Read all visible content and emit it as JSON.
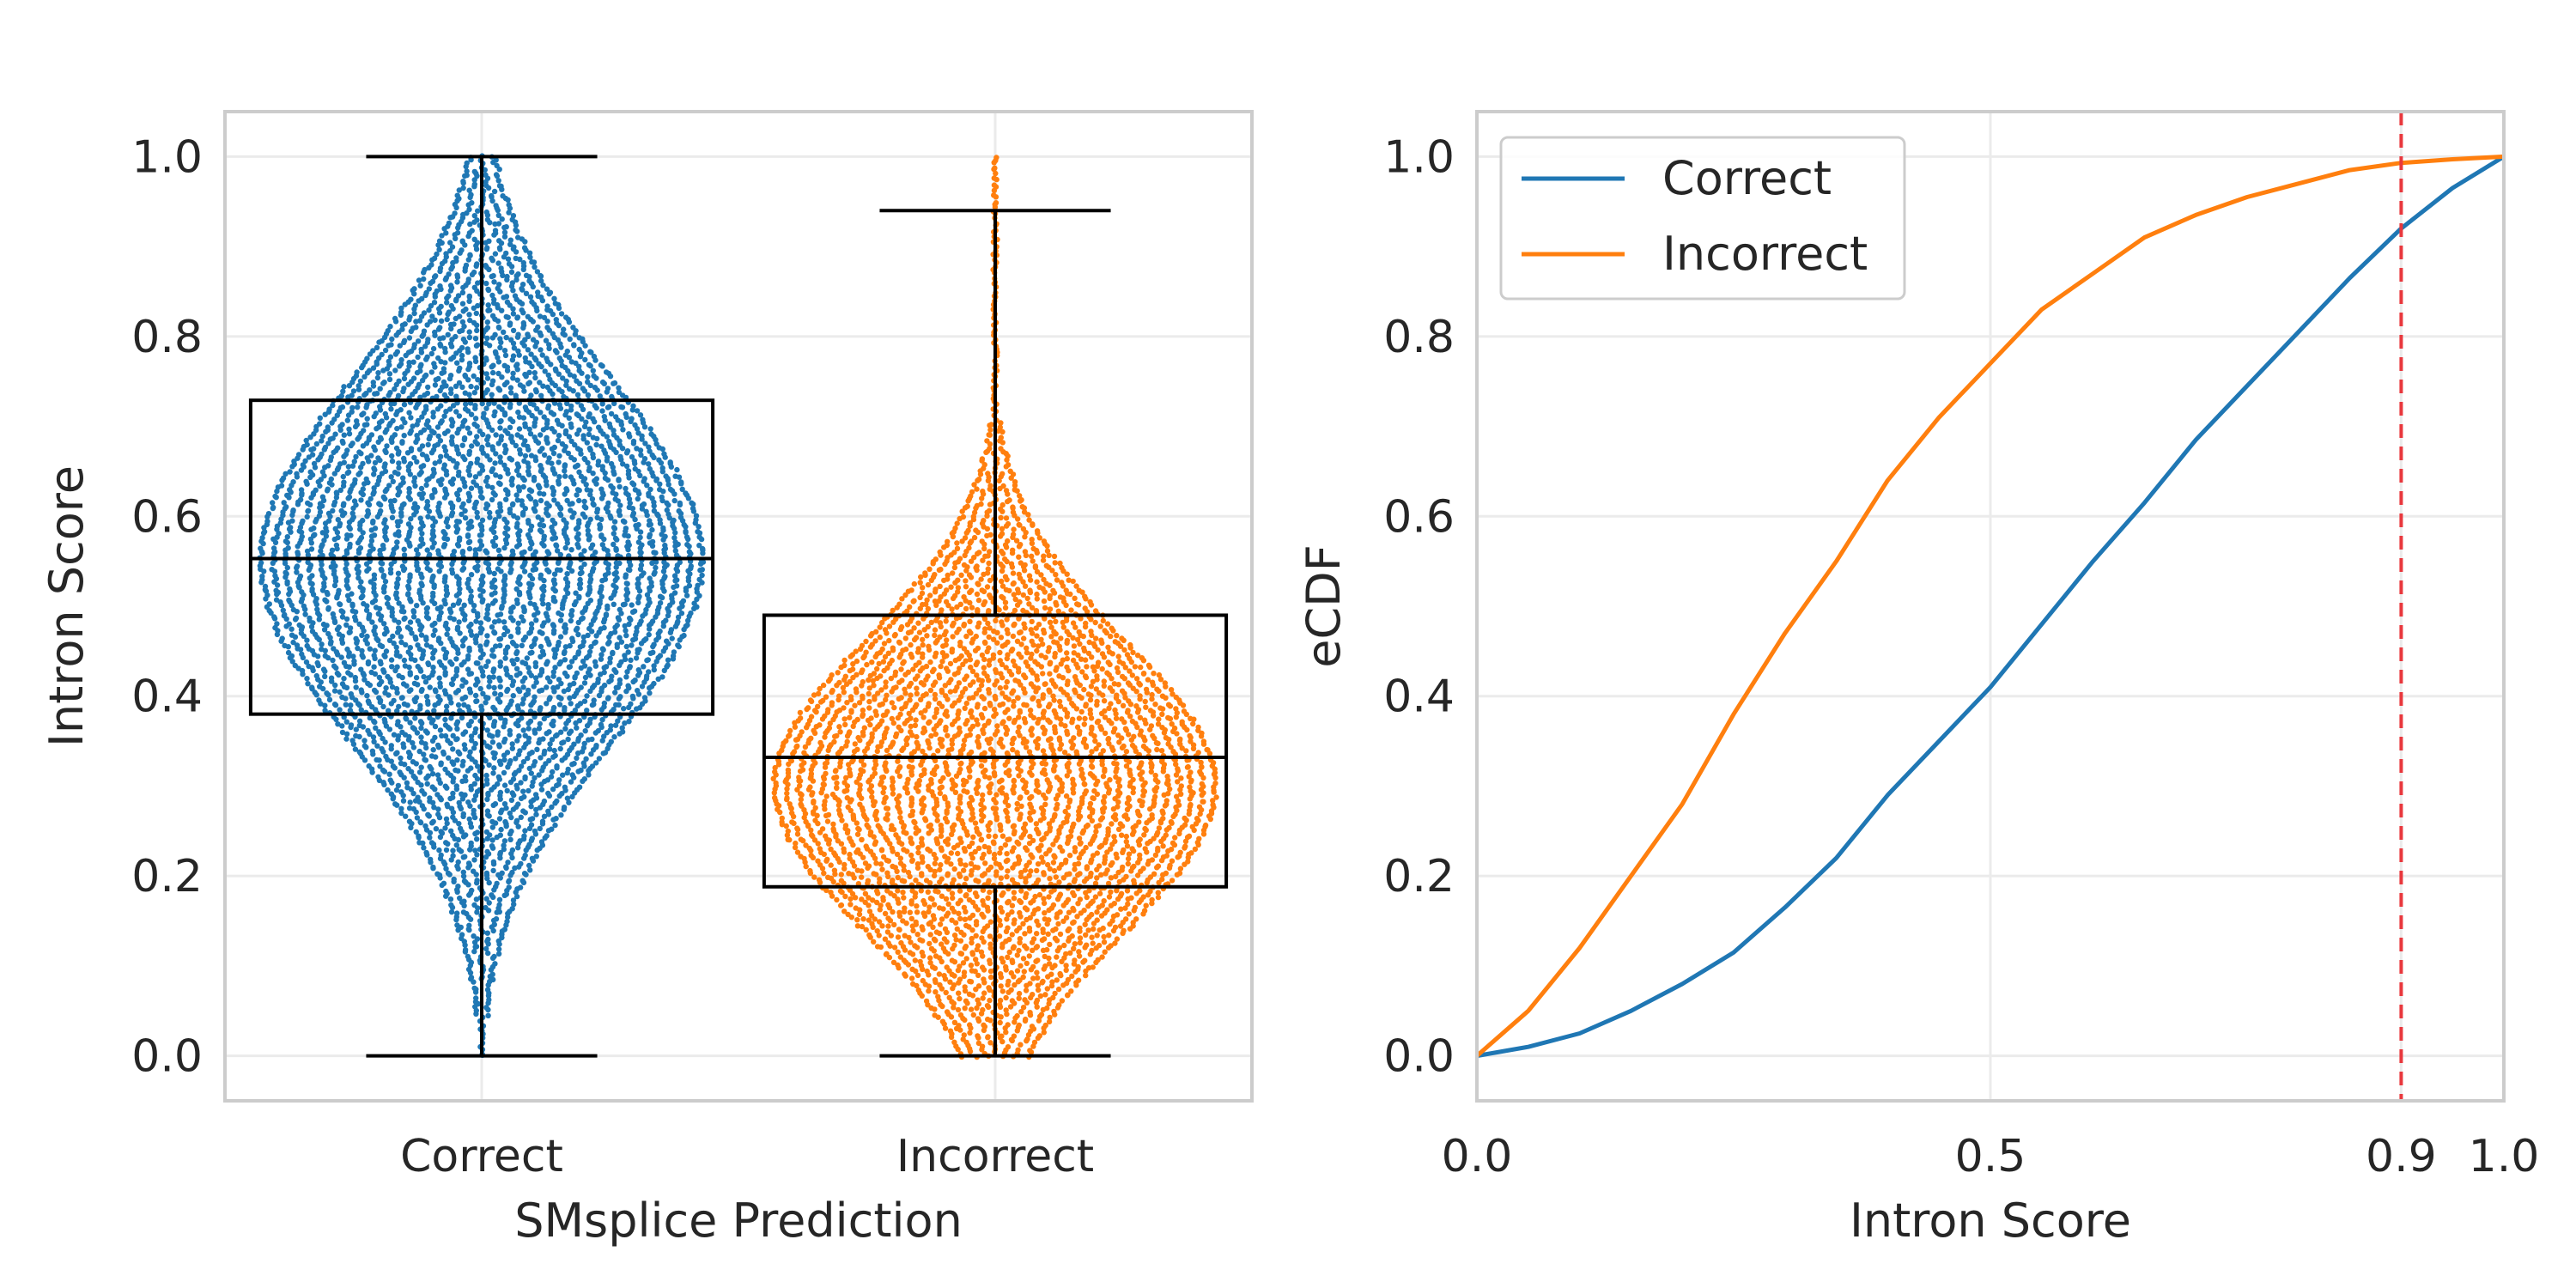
{
  "chart_data": [
    {
      "type": "box-swarm",
      "title": "",
      "xlabel": "SMsplice Prediction",
      "ylabel": "Intron Score",
      "categories": [
        "Correct",
        "Incorrect"
      ],
      "ylim": [
        -0.05,
        1.05
      ],
      "yticks": [
        0.0,
        0.2,
        0.4,
        0.6,
        0.8,
        1.0
      ],
      "ytick_labels": [
        "0.0",
        "0.2",
        "0.4",
        "0.6",
        "0.8",
        "1.0"
      ],
      "grid": true,
      "series": [
        {
          "name": "Correct",
          "color": "#1f77b4",
          "whisker_low": 0.0,
          "q1": 0.38,
          "median": 0.553,
          "q3": 0.729,
          "whisker_high": 1.0
        },
        {
          "name": "Incorrect",
          "color": "#ff7f0e",
          "whisker_low": 0.0,
          "q1": 0.188,
          "median": 0.332,
          "q3": 0.49,
          "whisker_high": 0.94
        }
      ]
    },
    {
      "type": "line",
      "title": "",
      "xlabel": "Intron Score",
      "ylabel": "eCDF",
      "xlim": [
        0.0,
        1.0
      ],
      "ylim": [
        -0.05,
        1.05
      ],
      "xticks": [
        0.0,
        0.5,
        0.9,
        1.0
      ],
      "xtick_labels": [
        "0.0",
        "0.5",
        "0.9",
        "1.0"
      ],
      "yticks": [
        0.0,
        0.2,
        0.4,
        0.6,
        0.8,
        1.0
      ],
      "ytick_labels": [
        "0.0",
        "0.2",
        "0.4",
        "0.6",
        "0.8",
        "1.0"
      ],
      "grid": true,
      "legend_position": "top-left",
      "vline": {
        "x": 0.9,
        "color": "#e8383d",
        "style": "dashed"
      },
      "series": [
        {
          "name": "Correct",
          "color": "#1f77b4",
          "x": [
            0.0,
            0.05,
            0.1,
            0.15,
            0.2,
            0.25,
            0.3,
            0.35,
            0.4,
            0.45,
            0.5,
            0.55,
            0.6,
            0.65,
            0.7,
            0.75,
            0.8,
            0.85,
            0.9,
            0.95,
            1.0
          ],
          "y": [
            0.0,
            0.01,
            0.025,
            0.05,
            0.08,
            0.115,
            0.165,
            0.22,
            0.29,
            0.35,
            0.41,
            0.48,
            0.55,
            0.615,
            0.685,
            0.745,
            0.805,
            0.865,
            0.92,
            0.965,
            1.0
          ]
        },
        {
          "name": "Incorrect",
          "color": "#ff7f0e",
          "x": [
            0.0,
            0.05,
            0.1,
            0.15,
            0.2,
            0.25,
            0.3,
            0.35,
            0.4,
            0.45,
            0.5,
            0.55,
            0.6,
            0.65,
            0.7,
            0.75,
            0.8,
            0.85,
            0.9,
            0.95,
            1.0
          ],
          "y": [
            0.0,
            0.05,
            0.12,
            0.2,
            0.28,
            0.38,
            0.47,
            0.55,
            0.64,
            0.71,
            0.77,
            0.83,
            0.87,
            0.91,
            0.935,
            0.955,
            0.97,
            0.985,
            0.993,
            0.997,
            1.0
          ]
        }
      ]
    }
  ]
}
